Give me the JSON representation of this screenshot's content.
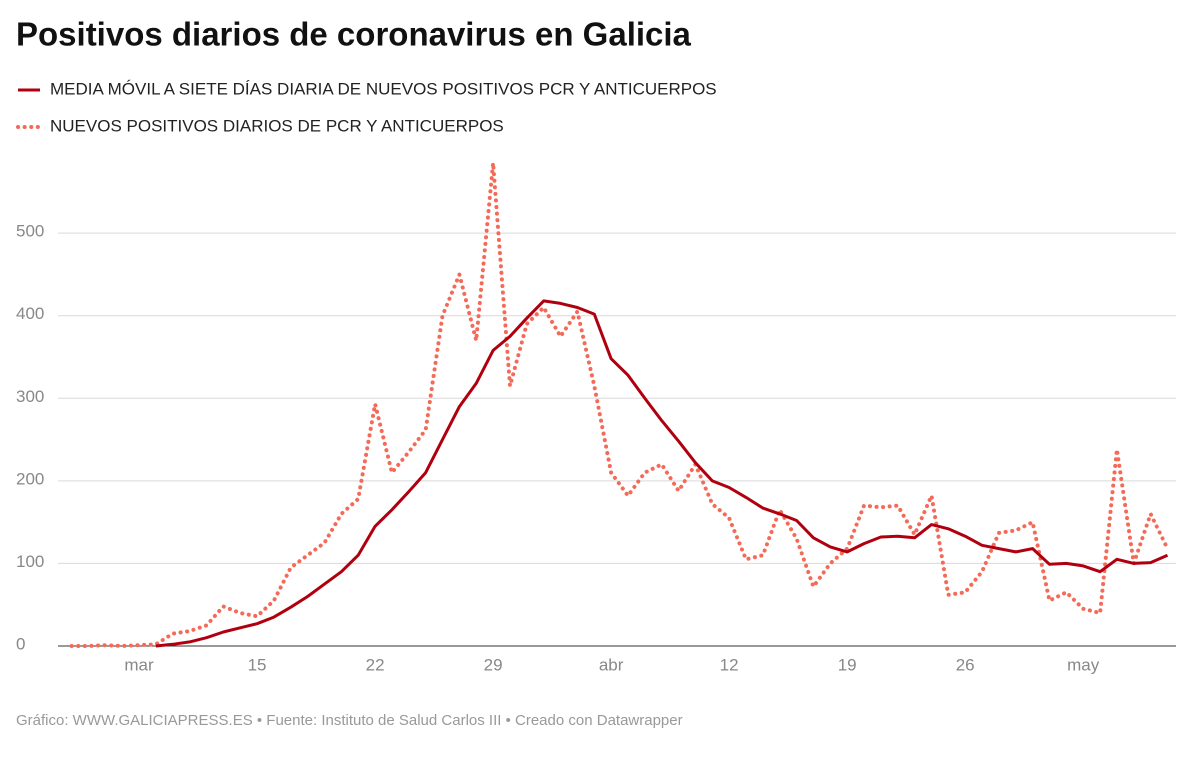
{
  "chart_data": {
    "type": "line",
    "title": "Positivos diarios de coronavirus en Galicia",
    "footer": "Gráfico: WWW.GALICIAPRESS.ES • Fuente: Instituto de Salud Carlos III • Creado con Datawrapper",
    "categories": [
      null,
      null,
      null,
      null,
      "mar",
      null,
      null,
      null,
      null,
      null,
      null,
      "15",
      null,
      null,
      null,
      null,
      null,
      null,
      "22",
      null,
      null,
      null,
      null,
      null,
      null,
      "29",
      null,
      null,
      null,
      null,
      null,
      null,
      "abr",
      null,
      null,
      null,
      null,
      null,
      null,
      "12",
      null,
      null,
      null,
      null,
      null,
      null,
      "19",
      null,
      null,
      null,
      null,
      null,
      null,
      "26",
      null,
      null,
      null,
      null,
      null,
      null,
      "may",
      null,
      null,
      null,
      null,
      null
    ],
    "ylim": [
      0,
      585
    ],
    "yticks": [
      0,
      100,
      200,
      300,
      400,
      500
    ],
    "grid": true,
    "series": [
      {
        "name": "MEDIA MÓVIL A SIETE DÍAS DIARIA DE NUEVOS POSITIVOS PCR Y ANTICUERPOS",
        "color": "#b0000f",
        "style": "solid",
        "values": [
          null,
          null,
          null,
          null,
          null,
          0,
          2,
          5,
          10,
          17,
          22,
          27,
          35,
          47,
          60,
          75,
          90,
          110,
          145,
          165,
          187,
          210,
          250,
          290,
          318,
          358,
          375,
          397,
          418,
          415,
          410,
          402,
          348,
          328,
          300,
          273,
          248,
          222,
          200,
          192,
          180,
          167,
          160,
          152,
          131,
          120,
          114,
          124,
          132,
          133,
          131,
          147,
          142,
          133,
          122,
          118,
          114,
          118,
          99,
          100,
          97,
          90,
          105,
          100,
          101,
          110
        ]
      },
      {
        "name": "NUEVOS POSITIVOS DIARIOS DE PCR Y ANTICUERPOS",
        "color": "#f46a58",
        "style": "dotted",
        "values": [
          0,
          0,
          1,
          0,
          1,
          2,
          15,
          18,
          25,
          48,
          40,
          36,
          55,
          95,
          110,
          125,
          160,
          178,
          293,
          210,
          235,
          262,
          400,
          450,
          370,
          585,
          315,
          390,
          410,
          375,
          405,
          315,
          210,
          182,
          210,
          220,
          188,
          220,
          172,
          155,
          105,
          110,
          165,
          130,
          72,
          100,
          118,
          170,
          168,
          170,
          135,
          182,
          62,
          65,
          90,
          137,
          140,
          150,
          55,
          65,
          45,
          40,
          238,
          100,
          160,
          118
        ]
      }
    ]
  }
}
